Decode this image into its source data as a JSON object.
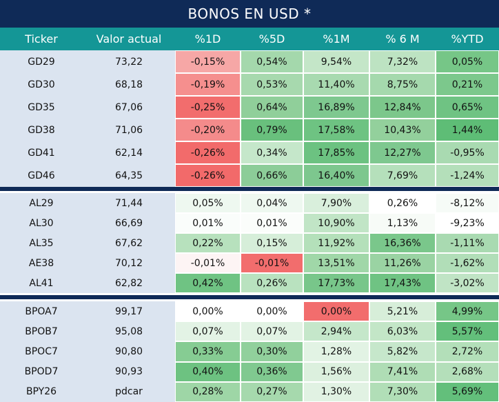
{
  "title": "BONOS EN USD *",
  "headers": [
    "Ticker",
    "Valor actual",
    "%1D",
    "%5D",
    "%1M",
    "% 6 M",
    "%YTD"
  ],
  "groups": [
    {
      "rows": [
        {
          "ticker": "GD29",
          "valor": "73,22",
          "cells": [
            "-0,15%",
            "0,54%",
            "9,54%",
            "7,32%",
            "0,05%"
          ],
          "colors": [
            "#f6a7a6",
            "#a4d8ac",
            "#c4e6c8",
            "#bde3c2",
            "#76c687"
          ]
        },
        {
          "ticker": "GD30",
          "valor": "68,18",
          "cells": [
            "-0,19%",
            "0,53%",
            "11,40%",
            "8,75%",
            "0,21%"
          ],
          "colors": [
            "#f58f8e",
            "#a7d9ae",
            "#a8dab0",
            "#a5d9ad",
            "#7cc88c"
          ]
        },
        {
          "ticker": "GD35",
          "valor": "67,06",
          "cells": [
            "-0,25%",
            "0,64%",
            "16,89%",
            "12,84%",
            "0,65%"
          ],
          "colors": [
            "#f26d6d",
            "#90cf9a",
            "#7ec88f",
            "#7cc78b",
            "#6fc383"
          ]
        },
        {
          "ticker": "GD38",
          "valor": "71,06",
          "cells": [
            "-0,20%",
            "0,79%",
            "17,58%",
            "10,43%",
            "1,44%"
          ],
          "colors": [
            "#f48b8b",
            "#69c07d",
            "#6ec382",
            "#93d09c",
            "#5ebd76"
          ]
        },
        {
          "ticker": "GD41",
          "valor": "62,14",
          "cells": [
            "-0,26%",
            "0,34%",
            "17,85%",
            "12,27%",
            "-0,95%"
          ],
          "colors": [
            "#f26b6b",
            "#c5e7ca",
            "#6cc281",
            "#7ec88f",
            "#a9dab1"
          ]
        },
        {
          "ticker": "GD46",
          "valor": "64,35",
          "cells": [
            "-0,26%",
            "0,66%",
            "16,40%",
            "7,69%",
            "-1,24%"
          ],
          "colors": [
            "#f26a6a",
            "#8ccd98",
            "#7dc78e",
            "#b5e0bb",
            "#b4dfba"
          ]
        }
      ]
    },
    {
      "rows": [
        {
          "ticker": "AL29",
          "valor": "71,44",
          "cells": [
            "0,05%",
            "0,04%",
            "7,90%",
            "0,26%",
            "-8,12%"
          ],
          "colors": [
            "#eef8f0",
            "#eef8f0",
            "#d9efdc",
            "#ffffff",
            "#f6fbf7"
          ]
        },
        {
          "ticker": "AL30",
          "valor": "66,69",
          "cells": [
            "0,01%",
            "0,01%",
            "10,90%",
            "1,13%",
            "-9,23%"
          ],
          "colors": [
            "#fafdfb",
            "#fbfdfb",
            "#c1e5c6",
            "#f7fbf7",
            "#ffffff"
          ]
        },
        {
          "ticker": "AL35",
          "valor": "67,62",
          "cells": [
            "0,22%",
            "0,15%",
            "11,92%",
            "16,36%",
            "-1,11%"
          ],
          "colors": [
            "#b7e1bd",
            "#d6eed9",
            "#b4e0ba",
            "#7ac78b",
            "#a9dab1"
          ]
        },
        {
          "ticker": "AE38",
          "valor": "70,12",
          "cells": [
            "-0,01%",
            "-0,01%",
            "13,51%",
            "11,26%",
            "-1,62%"
          ],
          "colors": [
            "#fdf4f4",
            "#f26d6d",
            "#a0d7a8",
            "#9ad3a3",
            "#b1deb8"
          ]
        },
        {
          "ticker": "AL41",
          "valor": "62,82",
          "cells": [
            "0,42%",
            "0,26%",
            "17,73%",
            "17,43%",
            "-3,02%"
          ],
          "colors": [
            "#6fc383",
            "#b9e2bf",
            "#78c68a",
            "#6fc383",
            "#c0e4c5"
          ]
        }
      ]
    },
    {
      "rows": [
        {
          "ticker": "BPOA7",
          "valor": "99,17",
          "cells": [
            "0,00%",
            "0,00%",
            "0,00%",
            "5,21%",
            "4,99%"
          ],
          "colors": [
            "#ffffff",
            "#ffffff",
            "#f26d6d",
            "#d7eed9",
            "#76c687"
          ]
        },
        {
          "ticker": "BPOB7",
          "valor": "95,08",
          "cells": [
            "0,07%",
            "0,07%",
            "2,94%",
            "6,03%",
            "5,57%"
          ],
          "colors": [
            "#e3f3e5",
            "#e2f3e4",
            "#c5e7ca",
            "#c3e6c7",
            "#63bf7b"
          ]
        },
        {
          "ticker": "BPOC7",
          "valor": "90,80",
          "cells": [
            "0,33%",
            "0,30%",
            "1,28%",
            "5,82%",
            "2,72%"
          ],
          "colors": [
            "#86cc93",
            "#91d09c",
            "#e2f3e4",
            "#c6e7cb",
            "#b3dfb9"
          ]
        },
        {
          "ticker": "BPOD7",
          "valor": "90,93",
          "cells": [
            "0,40%",
            "0,36%",
            "1,56%",
            "7,41%",
            "2,68%"
          ],
          "colors": [
            "#6dc281",
            "#80c990",
            "#dcf0de",
            "#afddb5",
            "#b4dfba"
          ]
        },
        {
          "ticker": "BPY26",
          "valor": "pdcar",
          "cells": [
            "0,28%",
            "0,27%",
            "1,30%",
            "7,30%",
            "5,69%"
          ],
          "colors": [
            "#9ed6a6",
            "#a6d9ad",
            "#e1f2e3",
            "#b1deb7",
            "#63bf7b"
          ]
        }
      ]
    }
  ]
}
